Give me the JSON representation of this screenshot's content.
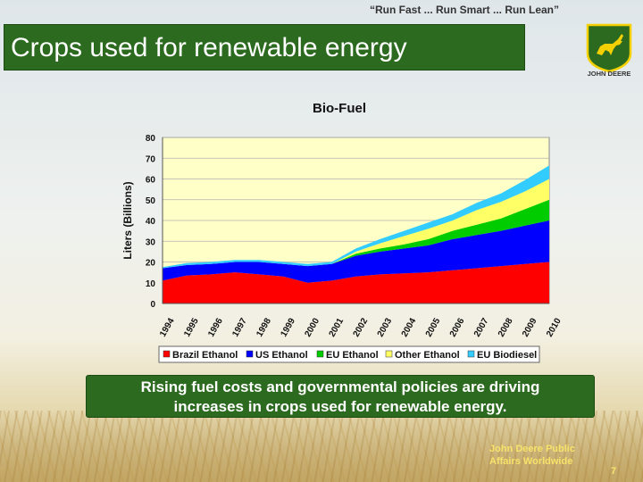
{
  "header": {
    "tagline": "“Run Fast ... Run Smart ... Run Lean”",
    "title": "Crops used for renewable energy",
    "logo_text": "JOHN DEERE"
  },
  "caption": {
    "line1": "Rising fuel costs and governmental policies are driving",
    "line2": "increases in crops used for renewable energy."
  },
  "footer": {
    "line1": "John Deere Public",
    "line2": "Affairs Worldwide",
    "page_number": "7"
  },
  "colors": {
    "brand_green": "#2c6b1f",
    "logo_yellow": "#f5d000",
    "plot_background": "#ffffc8"
  },
  "chart_data": {
    "type": "area",
    "stacked": true,
    "title": "Bio-Fuel",
    "xlabel": "",
    "ylabel": "Liters (Billions)",
    "x": [
      "1994",
      "1995",
      "1996",
      "1997",
      "1998",
      "1999",
      "2000",
      "2001",
      "2002",
      "2003",
      "2004",
      "2005",
      "2006",
      "2007",
      "2008",
      "2009",
      "2010"
    ],
    "ylim": [
      0,
      80
    ],
    "yticks": [
      0,
      10,
      20,
      30,
      40,
      50,
      60,
      70,
      80
    ],
    "grid": true,
    "legend_position": "bottom",
    "series": [
      {
        "name": "Brazil Ethanol",
        "color": "#ff0000",
        "values": [
          11,
          13.5,
          14,
          15,
          14,
          13,
          10,
          11,
          13,
          14,
          14.5,
          15,
          16,
          17,
          18,
          19,
          20
        ]
      },
      {
        "name": "US Ethanol",
        "color": "#0000ff",
        "values": [
          6,
          5,
          5,
          5,
          6,
          6,
          8,
          8,
          10,
          11,
          12,
          13,
          15,
          16,
          17,
          18.5,
          20
        ]
      },
      {
        "name": "EU Ethanol",
        "color": "#00cc00",
        "values": [
          0,
          0,
          0,
          0,
          0,
          0,
          0,
          0,
          1,
          1.5,
          2,
          3,
          4,
          5,
          6,
          8,
          10
        ]
      },
      {
        "name": "Other Ethanol",
        "color": "#ffff66",
        "values": [
          0,
          0,
          0,
          0,
          0,
          0,
          0,
          0,
          1,
          2.5,
          4,
          5,
          5,
          7,
          8,
          8.5,
          10
        ]
      },
      {
        "name": "EU Biodiesel",
        "color": "#33ccff",
        "values": [
          0.5,
          1,
          1,
          1,
          1,
          1,
          1,
          1,
          1.5,
          2,
          2.5,
          3,
          3,
          3.5,
          4,
          5.5,
          6.5
        ]
      }
    ]
  }
}
